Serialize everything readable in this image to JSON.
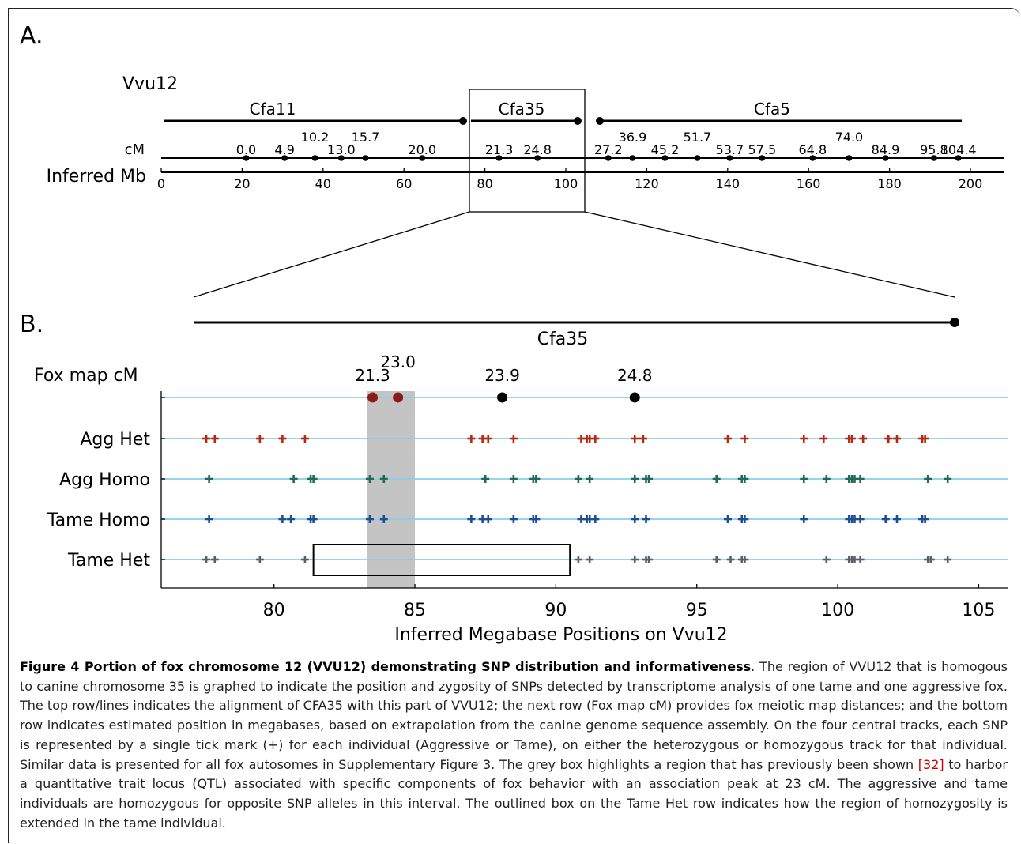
{
  "panel_a": {
    "label": "A.",
    "chrom_label": "Vvu12",
    "segment_labels": [
      "Cfa11",
      "Cfa35",
      "Cfa5"
    ],
    "cm_axis_label": "cM",
    "mb_axis_label": "Inferred Mb",
    "cm_markers": [
      {
        "label": "0.0",
        "mb": 21
      },
      {
        "label": "4.9",
        "mb": 30.5
      },
      {
        "label": "10.2",
        "mb": 38
      },
      {
        "label": "13.0",
        "mb": 44.5
      },
      {
        "label": "15.7",
        "mb": 50.5
      },
      {
        "label": "20.0",
        "mb": 64.5
      },
      {
        "label": "21.3",
        "mb": 83.5
      },
      {
        "label": "24.8",
        "mb": 93
      },
      {
        "label": "27.2",
        "mb": 110.5
      },
      {
        "label": "36.9",
        "mb": 116.5
      },
      {
        "label": "45.2",
        "mb": 124.5
      },
      {
        "label": "51.7",
        "mb": 132.5
      },
      {
        "label": "53.7",
        "mb": 140.5
      },
      {
        "label": "57.5",
        "mb": 148.5
      },
      {
        "label": "64.8",
        "mb": 161
      },
      {
        "label": "74.0",
        "mb": 170
      },
      {
        "label": "84.9",
        "mb": 179
      },
      {
        "label": "95.8",
        "mb": 191
      },
      {
        "label": "104.4",
        "mb": 197
      }
    ],
    "mb_ticks": [
      "0",
      "20",
      "40",
      "60",
      "80",
      "100",
      "120",
      "140",
      "160",
      "180",
      "200"
    ]
  },
  "panel_b": {
    "label": "B.",
    "segment_label": "Cfa35",
    "fox_map_label": "Fox map cM",
    "x_axis_label": "Inferred Megabase Positions on Vvu12",
    "x_ticks": [
      "80",
      "85",
      "90",
      "95",
      "100",
      "105"
    ],
    "fox_markers": [
      {
        "label": "21.3",
        "x": 83.5,
        "color": "#8b1a1a"
      },
      {
        "label": "23.0",
        "x": 84.4,
        "color": "#8b1a1a"
      },
      {
        "label": "23.9",
        "x": 88.1,
        "color": "#000000"
      },
      {
        "label": "24.8",
        "x": 92.8,
        "color": "#000000"
      }
    ],
    "qtl_region": {
      "x_start": 83.3,
      "x_end": 85.0
    },
    "homozygosity_box": {
      "x_start": 81.4,
      "x_end": 90.5
    }
  },
  "chart_data": {
    "type": "scatter",
    "title": "",
    "xlabel": "Inferred Megabase Positions on Vvu12",
    "ylabel": "",
    "xlim": [
      76,
      106
    ],
    "tracks": [
      {
        "name": "Agg Het",
        "color": "#b22a14",
        "x": [
          77.6,
          77.9,
          79.5,
          80.3,
          81.1,
          87.0,
          87.4,
          87.6,
          88.5,
          90.9,
          91.1,
          91.2,
          91.4,
          92.8,
          93.1,
          96.1,
          96.7,
          98.8,
          99.5,
          100.4,
          100.5,
          100.9,
          101.8,
          102.1,
          103.0,
          103.1
        ]
      },
      {
        "name": "Agg Homo",
        "color": "#1f6b55",
        "x": [
          77.7,
          80.7,
          81.3,
          81.4,
          83.4,
          83.9,
          87.5,
          88.5,
          89.2,
          89.3,
          90.8,
          91.2,
          92.8,
          93.2,
          93.3,
          95.7,
          96.6,
          96.7,
          98.8,
          99.6,
          100.4,
          100.5,
          100.6,
          100.8,
          103.2,
          103.9
        ]
      },
      {
        "name": "Tame Homo",
        "color": "#1c4f8f",
        "x": [
          77.7,
          80.3,
          80.6,
          81.3,
          81.4,
          83.4,
          83.9,
          87.0,
          87.4,
          87.6,
          88.5,
          89.2,
          89.3,
          90.9,
          91.1,
          91.2,
          91.4,
          92.8,
          93.2,
          96.1,
          96.6,
          96.7,
          98.8,
          100.4,
          100.5,
          100.6,
          100.8,
          101.7,
          102.1,
          103.0,
          103.1
        ]
      },
      {
        "name": "Tame Het",
        "color": "#5a6068",
        "x": [
          77.6,
          77.9,
          79.5,
          81.1,
          90.8,
          91.2,
          92.8,
          93.2,
          93.3,
          95.7,
          96.2,
          96.6,
          96.7,
          99.6,
          100.4,
          100.5,
          100.6,
          100.8,
          103.2,
          103.3,
          103.9
        ]
      }
    ]
  },
  "caption": {
    "title": "Figure 4 Portion of fox chromosome 12 (VVU12) demonstrating SNP distribution and informativeness",
    "text_1": ". The region of VVU12 that is homogous to canine chromosome 35 is graphed to indicate the position and zygosity of SNPs detected by transcriptome analysis of one tame and one aggressive fox. The top row/lines indicates the alignment of CFA35 with this part of VVU12; the next row (Fox map cM) provides fox meiotic map distances; and the bottom row indicates estimated position in megabases, based on extrapolation from the canine genome sequence assembly. On the four central tracks, each SNP is represented by a single tick mark (+) for each individual (Aggressive or Tame), on either the heterozygous or homozygous track for that individual. Similar data is presented for all fox autosomes in Supplementary Figure 3. The grey box highlights a region that has previously been shown ",
    "ref": "[32]",
    "text_2": " to harbor a quantitative trait locus (QTL) associated with specific components of fox behavior with an association peak at 23 cM. The aggressive and tame individuals are homozygous for opposite SNP alleles in this interval. The outlined box on the Tame Het row indicates how the region of homozygosity is extended in the tame individual."
  }
}
